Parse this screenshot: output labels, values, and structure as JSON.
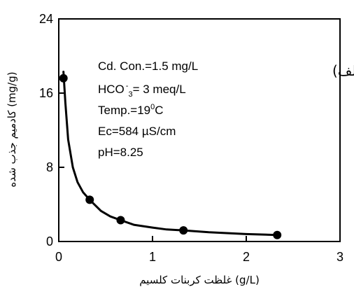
{
  "chart_data": {
    "type": "scatter",
    "xlabel": "(g/L) غلظت کربنات کلسیم",
    "ylabel": "(mg/g) کادمیم جذب شده",
    "xlim": [
      0,
      3
    ],
    "ylim": [
      0,
      24
    ],
    "x_ticks": [
      "0",
      "1",
      "2",
      "3"
    ],
    "y_ticks": [
      "0",
      "8",
      "16",
      "24"
    ],
    "grid": false,
    "panel_label": "الف)",
    "annotations": [
      "Cd. Con.=1.5 mg/L",
      "HCO",
      "-",
      "3",
      "= 3 meq/L",
      "Temp.=19",
      "0",
      "C",
      "Ec=584 µS/cm",
      "pH=8.25"
    ],
    "points": [
      {
        "x": 0.05,
        "y": 17.6
      },
      {
        "x": 0.33,
        "y": 4.5
      },
      {
        "x": 0.66,
        "y": 2.3
      },
      {
        "x": 1.33,
        "y": 1.2
      },
      {
        "x": 2.33,
        "y": 0.7
      }
    ],
    "fit_curve": [
      {
        "x": 0.05,
        "y": 18.3
      },
      {
        "x": 0.07,
        "y": 15.0
      },
      {
        "x": 0.1,
        "y": 11.0
      },
      {
        "x": 0.15,
        "y": 8.0
      },
      {
        "x": 0.2,
        "y": 6.4
      },
      {
        "x": 0.26,
        "y": 5.3
      },
      {
        "x": 0.33,
        "y": 4.5
      },
      {
        "x": 0.45,
        "y": 3.3
      },
      {
        "x": 0.55,
        "y": 2.7
      },
      {
        "x": 0.66,
        "y": 2.3
      },
      {
        "x": 0.8,
        "y": 1.8
      },
      {
        "x": 1.0,
        "y": 1.5
      },
      {
        "x": 1.15,
        "y": 1.3
      },
      {
        "x": 1.33,
        "y": 1.2
      },
      {
        "x": 1.6,
        "y": 1.0
      },
      {
        "x": 2.0,
        "y": 0.8
      },
      {
        "x": 2.33,
        "y": 0.7
      }
    ]
  }
}
